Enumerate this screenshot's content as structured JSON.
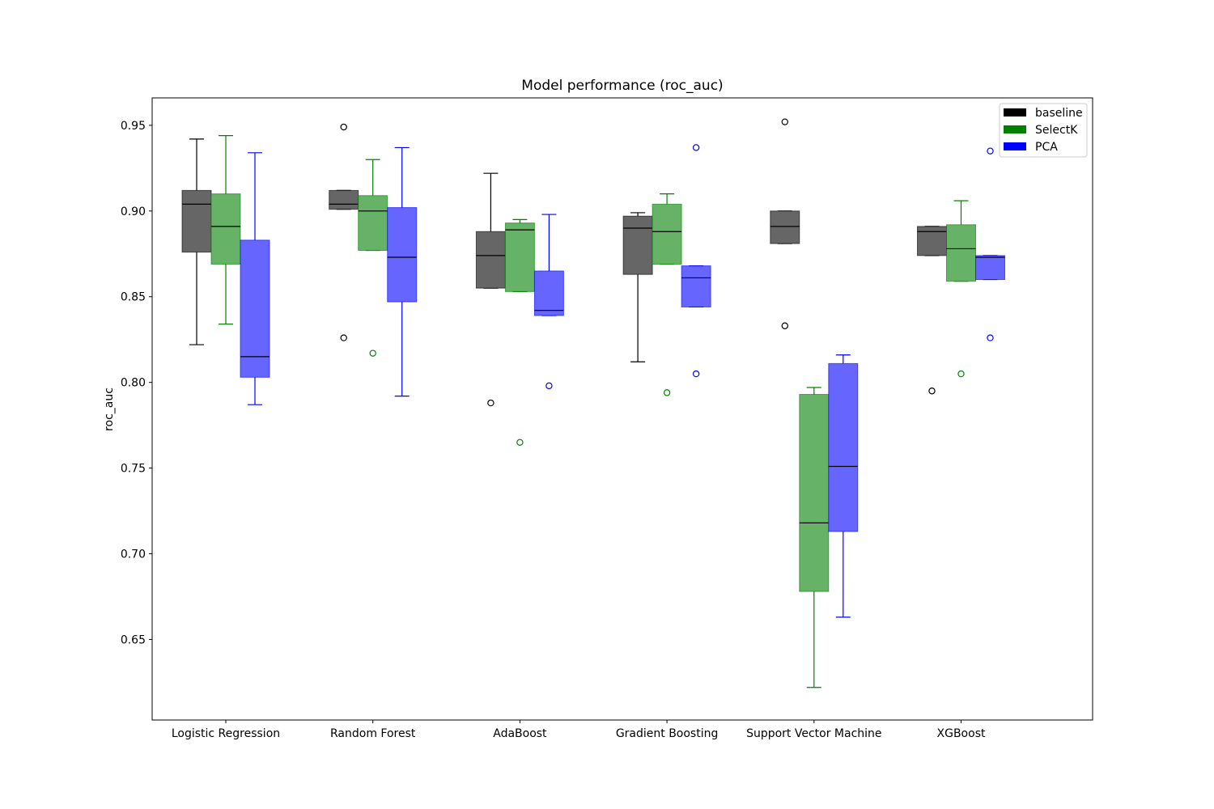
{
  "chart_data": {
    "type": "boxplot",
    "title": "Model performance (roc_auc)",
    "xlabel": "",
    "ylabel": "roc_auc",
    "ylim": [
      0.603,
      0.966
    ],
    "yticks": [
      0.65,
      0.7,
      0.75,
      0.8,
      0.85,
      0.9,
      0.95
    ],
    "ytick_labels": [
      "0.65",
      "0.70",
      "0.75",
      "0.80",
      "0.85",
      "0.90",
      "0.95"
    ],
    "grid": false,
    "legend_position": "top-right",
    "categories": [
      "Logistic Regression",
      "Random Forest",
      "AdaBoost",
      "Gradient Boosting",
      "Support Vector Machine",
      "XGBoost"
    ],
    "series": [
      {
        "name": "baseline",
        "color": "#000000",
        "fill": "#666666",
        "boxes": [
          {
            "whislo": 0.822,
            "q1": 0.876,
            "med": 0.904,
            "q3": 0.912,
            "whishi": 0.942,
            "fliers": []
          },
          {
            "whislo": 0.901,
            "q1": 0.901,
            "med": 0.904,
            "q3": 0.912,
            "whishi": 0.912,
            "fliers": [
              0.949,
              0.826
            ]
          },
          {
            "whislo": 0.855,
            "q1": 0.855,
            "med": 0.874,
            "q3": 0.888,
            "whishi": 0.922,
            "fliers": [
              0.788
            ]
          },
          {
            "whislo": 0.812,
            "q1": 0.863,
            "med": 0.89,
            "q3": 0.897,
            "whishi": 0.899,
            "fliers": []
          },
          {
            "whislo": 0.881,
            "q1": 0.881,
            "med": 0.891,
            "q3": 0.9,
            "whishi": 0.9,
            "fliers": [
              0.952,
              0.833
            ]
          },
          {
            "whislo": 0.874,
            "q1": 0.874,
            "med": 0.888,
            "q3": 0.891,
            "whishi": 0.891,
            "fliers": [
              0.795
            ]
          }
        ]
      },
      {
        "name": "SelectK",
        "color": "#008000",
        "fill": "#66b266",
        "boxes": [
          {
            "whislo": 0.834,
            "q1": 0.869,
            "med": 0.891,
            "q3": 0.91,
            "whishi": 0.944,
            "fliers": []
          },
          {
            "whislo": 0.877,
            "q1": 0.877,
            "med": 0.9,
            "q3": 0.909,
            "whishi": 0.93,
            "fliers": [
              0.817
            ]
          },
          {
            "whislo": 0.853,
            "q1": 0.853,
            "med": 0.889,
            "q3": 0.893,
            "whishi": 0.895,
            "fliers": [
              0.765
            ]
          },
          {
            "whislo": 0.869,
            "q1": 0.869,
            "med": 0.888,
            "q3": 0.904,
            "whishi": 0.91,
            "fliers": [
              0.794
            ]
          },
          {
            "whislo": 0.622,
            "q1": 0.678,
            "med": 0.718,
            "q3": 0.793,
            "whishi": 0.797,
            "fliers": []
          },
          {
            "whislo": 0.859,
            "q1": 0.859,
            "med": 0.878,
            "q3": 0.892,
            "whishi": 0.906,
            "fliers": [
              0.805
            ]
          }
        ]
      },
      {
        "name": "PCA",
        "color": "#0000ff",
        "fill": "#6666ff",
        "boxes": [
          {
            "whislo": 0.787,
            "q1": 0.803,
            "med": 0.815,
            "q3": 0.883,
            "whishi": 0.934,
            "fliers": []
          },
          {
            "whislo": 0.792,
            "q1": 0.847,
            "med": 0.873,
            "q3": 0.902,
            "whishi": 0.937,
            "fliers": []
          },
          {
            "whislo": 0.839,
            "q1": 0.839,
            "med": 0.842,
            "q3": 0.865,
            "whishi": 0.898,
            "fliers": [
              0.798
            ]
          },
          {
            "whislo": 0.844,
            "q1": 0.844,
            "med": 0.861,
            "q3": 0.868,
            "whishi": 0.868,
            "fliers": [
              0.937,
              0.805
            ]
          },
          {
            "whislo": 0.663,
            "q1": 0.713,
            "med": 0.751,
            "q3": 0.811,
            "whishi": 0.816,
            "fliers": []
          },
          {
            "whislo": 0.86,
            "q1": 0.86,
            "med": 0.873,
            "q3": 0.874,
            "whishi": 0.874,
            "fliers": [
              0.935,
              0.826
            ]
          }
        ]
      }
    ]
  }
}
